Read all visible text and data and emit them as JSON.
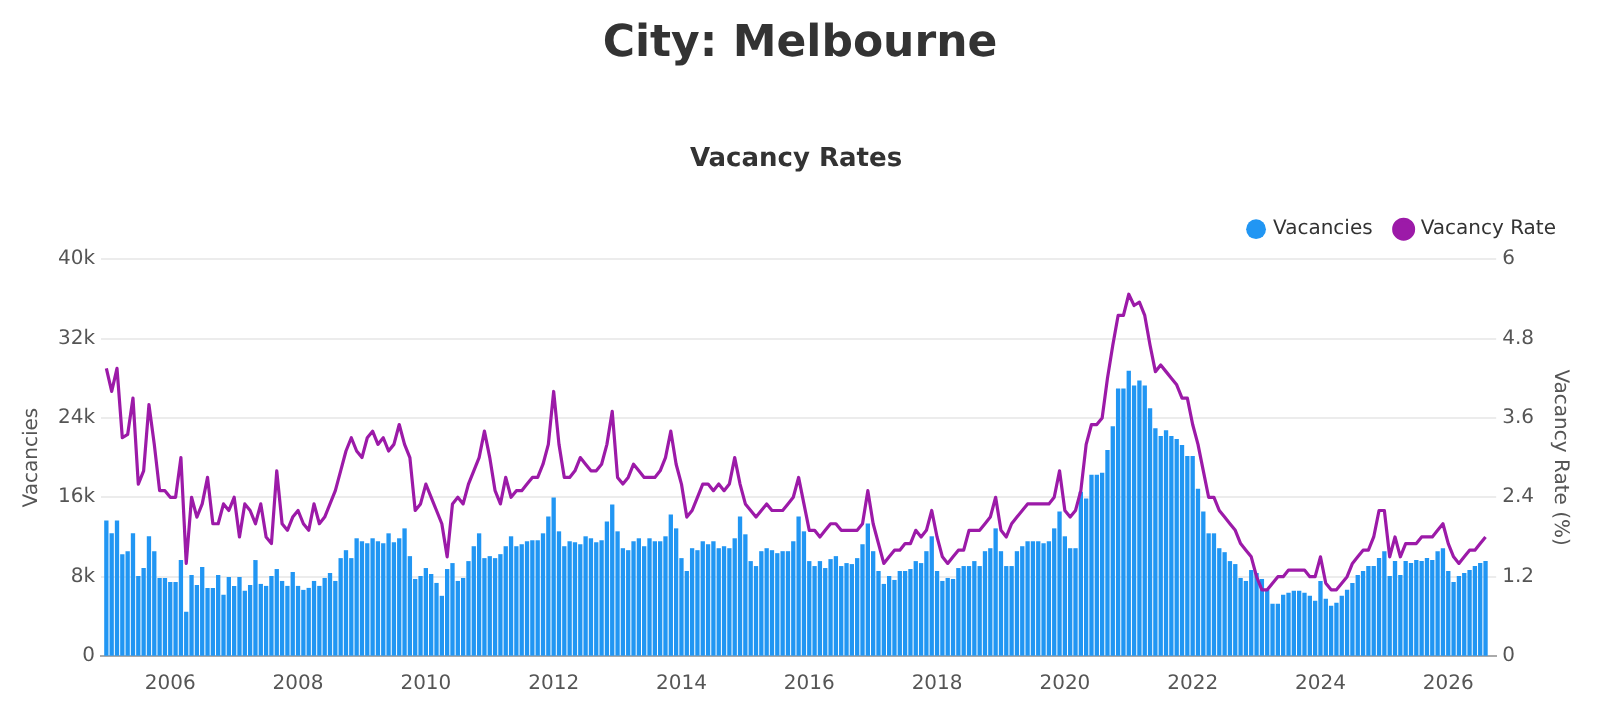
{
  "chart_data": {
    "type": "bar",
    "title": "City: Melbourne",
    "subtitle": "Vacancy Rates",
    "ylabel": "Vacancies",
    "y2label": "Vacancy Rate (%)",
    "x": [
      "2005-01",
      "2005-02",
      "2005-03",
      "2005-04",
      "2005-05",
      "2005-06",
      "2005-07",
      "2005-08",
      "2005-09",
      "2005-10",
      "2005-11",
      "2005-12",
      "2006-01",
      "2006-02",
      "2006-03",
      "2006-04",
      "2006-05",
      "2006-06",
      "2006-07",
      "2006-08",
      "2006-09",
      "2006-10",
      "2006-11",
      "2006-12",
      "2007-01",
      "2007-02",
      "2007-03",
      "2007-04",
      "2007-05",
      "2007-06",
      "2007-07",
      "2007-08",
      "2007-09",
      "2007-10",
      "2007-11",
      "2007-12",
      "2008-01",
      "2008-02",
      "2008-03",
      "2008-04",
      "2008-05",
      "2008-06",
      "2008-07",
      "2008-08",
      "2008-09",
      "2008-10",
      "2008-11",
      "2008-12",
      "2009-01",
      "2009-02",
      "2009-03",
      "2009-04",
      "2009-05",
      "2009-06",
      "2009-07",
      "2009-08",
      "2009-09",
      "2009-10",
      "2009-11",
      "2009-12",
      "2010-01",
      "2010-02",
      "2010-03",
      "2010-04",
      "2010-05",
      "2010-06",
      "2010-07",
      "2010-08",
      "2010-09",
      "2010-10",
      "2010-11",
      "2010-12",
      "2011-01",
      "2011-02",
      "2011-03",
      "2011-04",
      "2011-05",
      "2011-06",
      "2011-07",
      "2011-08",
      "2011-09",
      "2011-10",
      "2011-11",
      "2011-12",
      "2012-01",
      "2012-02",
      "2012-03",
      "2012-04",
      "2012-05",
      "2012-06",
      "2012-07",
      "2012-08",
      "2012-09",
      "2012-10",
      "2012-11",
      "2012-12",
      "2013-01",
      "2013-02",
      "2013-03",
      "2013-04",
      "2013-05",
      "2013-06",
      "2013-07",
      "2013-08",
      "2013-09",
      "2013-10",
      "2013-11",
      "2013-12",
      "2014-01",
      "2014-02",
      "2014-03",
      "2014-04",
      "2014-05",
      "2014-06",
      "2014-07",
      "2014-08",
      "2014-09",
      "2014-10",
      "2014-11",
      "2014-12",
      "2015-01",
      "2015-02",
      "2015-03",
      "2015-04",
      "2015-05",
      "2015-06",
      "2015-07",
      "2015-08",
      "2015-09",
      "2015-10",
      "2015-11",
      "2015-12",
      "2016-01",
      "2016-02",
      "2016-03",
      "2016-04",
      "2016-05",
      "2016-06",
      "2016-07",
      "2016-08",
      "2016-09",
      "2016-10",
      "2016-11",
      "2016-12",
      "2017-01",
      "2017-02",
      "2017-03",
      "2017-04",
      "2017-05",
      "2017-06",
      "2017-07",
      "2017-08",
      "2017-09",
      "2017-10",
      "2017-11",
      "2017-12",
      "2018-01",
      "2018-02",
      "2018-03",
      "2018-04",
      "2018-05",
      "2018-06",
      "2018-07",
      "2018-08",
      "2018-09",
      "2018-10",
      "2018-11",
      "2018-12",
      "2019-01",
      "2019-02",
      "2019-03",
      "2019-04",
      "2019-05",
      "2019-06",
      "2019-07",
      "2019-08",
      "2019-09",
      "2019-10",
      "2019-11",
      "2019-12",
      "2020-01",
      "2020-02",
      "2020-03",
      "2020-04",
      "2020-05",
      "2020-06",
      "2020-07",
      "2020-08",
      "2020-09",
      "2020-10",
      "2020-11",
      "2020-12",
      "2021-01",
      "2021-02",
      "2021-03",
      "2021-04",
      "2021-05",
      "2021-06",
      "2021-07",
      "2021-08",
      "2021-09",
      "2021-10",
      "2021-11",
      "2021-12",
      "2022-01",
      "2022-02",
      "2022-03",
      "2022-04",
      "2022-05",
      "2022-06",
      "2022-07",
      "2022-08",
      "2022-09",
      "2022-10",
      "2022-11",
      "2022-12",
      "2023-01",
      "2023-02",
      "2023-03",
      "2023-04",
      "2023-05",
      "2023-06",
      "2023-07",
      "2023-08",
      "2023-09",
      "2023-10",
      "2023-11",
      "2023-12",
      "2024-01",
      "2024-02",
      "2024-03",
      "2024-04",
      "2024-05",
      "2024-06",
      "2024-07",
      "2024-08",
      "2024-09",
      "2024-10",
      "2024-11",
      "2024-12",
      "2025-01",
      "2025-02",
      "2025-03",
      "2025-04",
      "2025-05",
      "2025-06",
      "2025-07",
      "2025-08",
      "2025-09",
      "2025-10",
      "2025-11",
      "2025-12",
      "2026-01",
      "2026-02",
      "2026-03",
      "2026-04",
      "2026-05",
      "2026-06",
      "2026-07",
      "2026-08"
    ],
    "series": [
      {
        "name": "Vacancies",
        "color": "#2196f3",
        "values": [
          13.6,
          12.3,
          13.6,
          10.2,
          10.5,
          12.3,
          8.0,
          8.8,
          12.0,
          10.5,
          7.8,
          7.8,
          7.4,
          7.4,
          9.6,
          4.4,
          8.1,
          7.1,
          8.9,
          6.8,
          6.8,
          8.1,
          6.1,
          7.9,
          7.0,
          7.9,
          6.5,
          7.1,
          9.6,
          7.2,
          7.0,
          8.0,
          8.7,
          7.5,
          7.0,
          8.4,
          7.0,
          6.6,
          6.8,
          7.5,
          7.0,
          7.8,
          8.3,
          7.5,
          9.8,
          10.6,
          9.8,
          11.8,
          11.5,
          11.3,
          11.8,
          11.5,
          11.3,
          12.3,
          11.4,
          11.8,
          12.8,
          10.0,
          7.7,
          8.0,
          8.8,
          8.2,
          7.3,
          6.0,
          8.7,
          9.3,
          7.5,
          7.8,
          9.5,
          11.0,
          12.3,
          9.8,
          10.0,
          9.8,
          10.2,
          11.0,
          12.0,
          11.0,
          11.2,
          11.5,
          11.6,
          11.6,
          12.3,
          14.0,
          15.9,
          12.5,
          11.0,
          11.5,
          11.4,
          11.2,
          12.0,
          11.8,
          11.4,
          11.6,
          13.5,
          15.2,
          12.5,
          10.8,
          10.6,
          11.5,
          11.8,
          11.0,
          11.8,
          11.5,
          11.5,
          12.0,
          14.2,
          12.8,
          9.8,
          8.5,
          10.8,
          10.6,
          11.5,
          11.2,
          11.5,
          10.8,
          11.0,
          10.8,
          11.8,
          14.0,
          12.2,
          9.5,
          9.0,
          10.5,
          10.8,
          10.6,
          10.3,
          10.5,
          10.5,
          11.5,
          14.0,
          12.5,
          9.5,
          9.0,
          9.5,
          8.8,
          9.7,
          10.0,
          9.0,
          9.3,
          9.2,
          9.8,
          11.2,
          13.3,
          10.5,
          8.5,
          7.2,
          8.0,
          7.6,
          8.5,
          8.5,
          8.7,
          9.5,
          9.3,
          10.5,
          12.0,
          8.5,
          7.5,
          7.8,
          7.7,
          8.8,
          9.0,
          9.0,
          9.5,
          9.0,
          10.5,
          10.8,
          12.8,
          10.5,
          9.0,
          9.0,
          10.5,
          11.0,
          11.5,
          11.5,
          11.5,
          11.3,
          11.5,
          12.8,
          14.5,
          12.0,
          10.8,
          10.8,
          16.5,
          15.8,
          18.2,
          18.2,
          18.4,
          20.7,
          23.1,
          26.9,
          26.9,
          28.7,
          27.2,
          27.7,
          27.2,
          24.9,
          22.9,
          22.1,
          22.7,
          22.1,
          21.8,
          21.2,
          20.1,
          20.1,
          16.8,
          14.5,
          12.3,
          12.3,
          10.8,
          10.4,
          9.5,
          9.2,
          7.8,
          7.5,
          8.6,
          8.3,
          7.7,
          6.6,
          5.2,
          5.2,
          6.1,
          6.3,
          6.5,
          6.5,
          6.3,
          6.0,
          5.5,
          7.5,
          5.7,
          5.0,
          5.3,
          6.0,
          6.6,
          7.3,
          8.1,
          8.5,
          9.0,
          9.0,
          9.8,
          10.5,
          8.0,
          9.5,
          8.1,
          9.5,
          9.3,
          9.6,
          9.5,
          9.8,
          9.6,
          10.5,
          10.8,
          8.5,
          7.4,
          8.0,
          8.3,
          8.6,
          9.0,
          9.3,
          9.5
        ]
      },
      {
        "name": "Vacancy Rate",
        "type": "line",
        "axis": "y2",
        "color": "#9c1aa8",
        "values": [
          4.35,
          4.0,
          4.35,
          3.3,
          3.35,
          3.9,
          2.6,
          2.8,
          3.8,
          3.2,
          2.5,
          2.5,
          2.4,
          2.4,
          3.0,
          1.4,
          2.4,
          2.1,
          2.3,
          2.7,
          2.0,
          2.0,
          2.3,
          2.2,
          2.4,
          1.8,
          2.3,
          2.2,
          2.0,
          2.3,
          1.8,
          1.7,
          2.8,
          2.0,
          1.9,
          2.1,
          2.2,
          2.0,
          1.9,
          2.3,
          2.0,
          2.1,
          2.3,
          2.5,
          2.8,
          3.1,
          3.3,
          3.1,
          3.0,
          3.3,
          3.4,
          3.2,
          3.3,
          3.1,
          3.2,
          3.5,
          3.2,
          3.0,
          2.2,
          2.3,
          2.6,
          2.4,
          2.2,
          2.0,
          1.5,
          2.3,
          2.4,
          2.3,
          2.6,
          2.8,
          3.0,
          3.4,
          3.0,
          2.5,
          2.3,
          2.7,
          2.4,
          2.5,
          2.5,
          2.6,
          2.7,
          2.7,
          2.9,
          3.2,
          4.0,
          3.2,
          2.7,
          2.7,
          2.8,
          3.0,
          2.9,
          2.8,
          2.8,
          2.9,
          3.2,
          3.7,
          2.7,
          2.6,
          2.7,
          2.9,
          2.8,
          2.7,
          2.7,
          2.7,
          2.8,
          3.0,
          3.4,
          2.9,
          2.6,
          2.1,
          2.2,
          2.4,
          2.6,
          2.6,
          2.5,
          2.6,
          2.5,
          2.6,
          3.0,
          2.6,
          2.3,
          2.2,
          2.1,
          2.2,
          2.3,
          2.2,
          2.2,
          2.2,
          2.3,
          2.4,
          2.7,
          2.3,
          1.9,
          1.9,
          1.8,
          1.9,
          2.0,
          2.0,
          1.9,
          1.9,
          1.9,
          1.9,
          2.0,
          2.5,
          2.0,
          1.7,
          1.4,
          1.5,
          1.6,
          1.6,
          1.7,
          1.7,
          1.9,
          1.8,
          1.9,
          2.2,
          1.8,
          1.5,
          1.4,
          1.5,
          1.6,
          1.6,
          1.9,
          1.9,
          1.9,
          2.0,
          2.1,
          2.4,
          1.9,
          1.8,
          2.0,
          2.1,
          2.2,
          2.3,
          2.3,
          2.3,
          2.3,
          2.3,
          2.4,
          2.8,
          2.2,
          2.1,
          2.2,
          2.5,
          3.2,
          3.5,
          3.5,
          3.6,
          4.2,
          4.7,
          5.15,
          5.15,
          5.47,
          5.3,
          5.35,
          5.15,
          4.7,
          4.3,
          4.4,
          4.3,
          4.2,
          4.1,
          3.9,
          3.9,
          3.5,
          3.2,
          2.8,
          2.4,
          2.4,
          2.2,
          2.1,
          2.0,
          1.9,
          1.7,
          1.6,
          1.5,
          1.2,
          1.0,
          1.0,
          1.1,
          1.2,
          1.2,
          1.3,
          1.3,
          1.3,
          1.3,
          1.2,
          1.2,
          1.5,
          1.1,
          1.0,
          1.0,
          1.1,
          1.2,
          1.4,
          1.5,
          1.6,
          1.6,
          1.8,
          2.2,
          2.2,
          1.5,
          1.8,
          1.5,
          1.7,
          1.7,
          1.7,
          1.8,
          1.8,
          1.8,
          1.9,
          2.0,
          1.7,
          1.5,
          1.4,
          1.5,
          1.6,
          1.6,
          1.7,
          1.8
        ]
      }
    ],
    "xlim": [
      "2004-12",
      "2026-10"
    ],
    "xticks": [
      "2006",
      "2008",
      "2010",
      "2012",
      "2014",
      "2016",
      "2018",
      "2020",
      "2022",
      "2024",
      "2026"
    ],
    "ylim": [
      0,
      40
    ],
    "yticks": [
      0,
      {
        "value": 8,
        "label": "8k"
      },
      {
        "value": 16,
        "label": "16k"
      },
      {
        "value": 24,
        "label": "24k"
      },
      {
        "value": 32,
        "label": "32k"
      },
      {
        "value": 40,
        "label": "40k"
      }
    ],
    "y2lim": [
      0,
      6
    ],
    "y2ticks": [
      0,
      1.2,
      2.4,
      3.6,
      4.8,
      6
    ],
    "grid": "y",
    "legend": "top right"
  }
}
